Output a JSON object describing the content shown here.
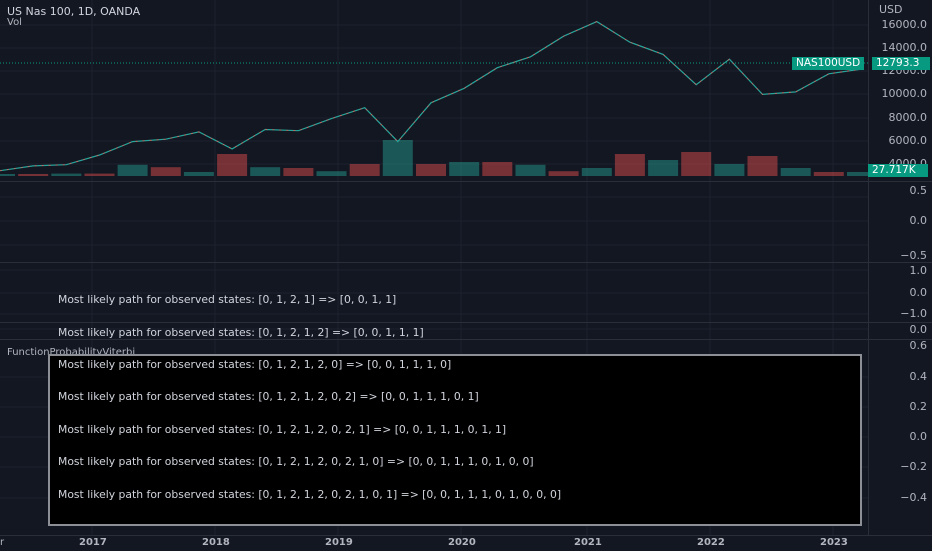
{
  "header": {
    "symbol_title": "US Nas 100, 1D, OANDA",
    "volume_label": "Vol"
  },
  "price_axis": {
    "currency": "USD",
    "price_ticks": [
      "16000.0",
      "14000.0",
      "12000.0",
      "10000.0",
      "8000.0",
      "6000.0",
      "4000.0"
    ],
    "pane2_ticks": [
      "0.5",
      "0.0",
      "−0.5"
    ],
    "pane3_ticks": [
      "1.0",
      "0.0",
      "−1.0"
    ],
    "pane4_ticks": [
      "0.0"
    ],
    "pane5_ticks": [
      "0.6",
      "0.4",
      "0.2",
      "0.0",
      "−0.2",
      "−0.4"
    ]
  },
  "tags": {
    "symbol_name": "NAS100USD",
    "last_price": "12793.3",
    "volume_value": "27.717K",
    "accent_color": "#089981"
  },
  "time_axis": {
    "labels": [
      "r",
      "2017",
      "2018",
      "2019",
      "2020",
      "2021",
      "2022",
      "2023"
    ]
  },
  "indicator": {
    "title": "FunctionProbabilityViterbi",
    "lines": [
      "Most likely path for observed states: [0, 1, 2, 1] => [0, 0, 1, 1]",
      "Most likely path for observed states: [0, 1, 2, 1, 2] => [0, 0, 1, 1, 1]",
      "Most likely path for observed states: [0, 1, 2, 1, 2, 0] => [0, 0, 1, 1, 1, 0]",
      "Most likely path for observed states: [0, 1, 2, 1, 2, 0, 2] => [0, 0, 1, 1, 1, 0, 1]",
      "Most likely path for observed states: [0, 1, 2, 1, 2, 0, 2, 1] => [0, 0, 1, 1, 1, 0, 1, 1]",
      "Most likely path for observed states: [0, 1, 2, 1, 2, 0, 2, 1, 0] => [0, 0, 1, 1, 1, 0, 1, 0, 0]",
      "Most likely path for observed states: [0, 1, 2, 1, 2, 0, 2, 1, 0, 1] => [0, 0, 1, 1, 1, 0, 1, 0, 0, 0]"
    ]
  },
  "chart_data": {
    "type": "line",
    "title": "US Nas 100, 1D, OANDA",
    "x": [
      "2016-03",
      "2016-09",
      "2017-01",
      "2017-06",
      "2018-01",
      "2018-04",
      "2018-09",
      "2018-12",
      "2019-04",
      "2019-07",
      "2019-12",
      "2020-02",
      "2020-03",
      "2020-06",
      "2020-09",
      "2021-01",
      "2021-04",
      "2021-09",
      "2021-11",
      "2022-01",
      "2022-03",
      "2022-06",
      "2022-08",
      "2022-10",
      "2022-12",
      "2023-02",
      "2023-03"
    ],
    "series": [
      {
        "name": "NAS100USD",
        "values": [
          4400,
          4800,
          4900,
          5700,
          6800,
          7000,
          7600,
          6200,
          7800,
          7700,
          8700,
          9600,
          6800,
          10000,
          11200,
          12900,
          13800,
          15500,
          16700,
          15000,
          14000,
          11500,
          13600,
          10700,
          10900,
          12400,
          12793
        ]
      }
    ],
    "ylim": [
      3800,
      17000
    ],
    "volume": [
      0.05,
      0.05,
      0.06,
      0.06,
      0.28,
      0.22,
      0.1,
      0.55,
      0.22,
      0.2,
      0.12,
      0.3,
      0.9,
      0.3,
      0.35,
      0.35,
      0.28,
      0.12,
      0.2,
      0.55,
      0.4,
      0.6,
      0.3,
      0.5,
      0.2,
      0.1,
      0.1
    ],
    "volume_last": "27.717K"
  }
}
